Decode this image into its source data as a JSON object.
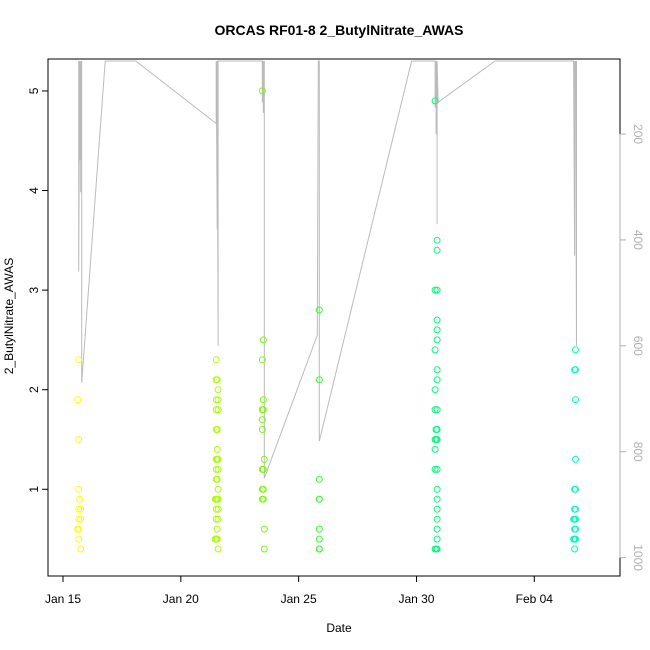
{
  "chart_data": {
    "type": "scatter",
    "title": "ORCAS RF01-8 2_ButylNitrate_AWAS",
    "xlabel": "Date",
    "ylabel": "2_ButylNitrate_AWAS",
    "xlim": [
      "2016-01-15",
      "2016-02-07"
    ],
    "ylim": [
      0.33,
      5.12
    ],
    "x_ticks": [
      {
        "date": "2016-01-15",
        "label": "Jan 15"
      },
      {
        "date": "2016-01-20",
        "label": "Jan 20"
      },
      {
        "date": "2016-01-25",
        "label": "Jan 25"
      },
      {
        "date": "2016-01-30",
        "label": "Jan 30"
      },
      {
        "date": "2016-02-04",
        "label": "Feb 04"
      }
    ],
    "y_ticks": [
      1,
      2,
      3,
      4,
      5
    ],
    "right_axis": {
      "label": "",
      "ticks": [
        200,
        400,
        600,
        800,
        1000
      ],
      "range_top": 62,
      "range_bottom": 1031,
      "color": "#b0b0b0"
    },
    "grid": false,
    "series": [
      {
        "color": "#ffff00",
        "points": [
          [
            "2016-01-15 16:00",
            2.3
          ],
          [
            "2016-01-15 15:00",
            1.9
          ],
          [
            "2016-01-15 16:00",
            1.5
          ],
          [
            "2016-01-15 16:00",
            1.0
          ],
          [
            "2016-01-15 17:00",
            0.9
          ],
          [
            "2016-01-15 16:00",
            0.8
          ],
          [
            "2016-01-15 18:00",
            0.8
          ],
          [
            "2016-01-15 16:00",
            0.7
          ],
          [
            "2016-01-15 18:00",
            0.7
          ],
          [
            "2016-01-15 15:00",
            0.6
          ],
          [
            "2016-01-15 16:00",
            0.6
          ],
          [
            "2016-01-15 16:00",
            0.5
          ],
          [
            "2016-01-15 18:00",
            0.4
          ]
        ]
      },
      {
        "color": "#aaff00",
        "points": [
          [
            "2016-01-21 12:00",
            2.3
          ],
          [
            "2016-01-21 12:00",
            2.1
          ],
          [
            "2016-01-21 13:00",
            2.1
          ],
          [
            "2016-01-21 14:00",
            2.0
          ],
          [
            "2016-01-21 12:00",
            1.9
          ],
          [
            "2016-01-21 14:00",
            1.9
          ],
          [
            "2016-01-21 12:00",
            1.8
          ],
          [
            "2016-01-21 14:00",
            1.8
          ],
          [
            "2016-01-21 12:00",
            1.6
          ],
          [
            "2016-01-21 13:00",
            1.6
          ],
          [
            "2016-01-21 13:00",
            1.4
          ],
          [
            "2016-01-21 12:00",
            1.3
          ],
          [
            "2016-01-21 13:00",
            1.3
          ],
          [
            "2016-01-21 14:00",
            1.3
          ],
          [
            "2016-01-21 12:00",
            1.2
          ],
          [
            "2016-01-21 14:00",
            1.2
          ],
          [
            "2016-01-21 12:00",
            1.1
          ],
          [
            "2016-01-21 13:00",
            1.1
          ],
          [
            "2016-01-21 14:00",
            1.0
          ],
          [
            "2016-01-21 11:00",
            0.9
          ],
          [
            "2016-01-21 12:00",
            0.9
          ],
          [
            "2016-01-21 13:00",
            0.9
          ],
          [
            "2016-01-21 14:00",
            0.9
          ],
          [
            "2016-01-21 12:00",
            0.8
          ],
          [
            "2016-01-21 14:00",
            0.8
          ],
          [
            "2016-01-21 12:00",
            0.7
          ],
          [
            "2016-01-21 14:00",
            0.7
          ],
          [
            "2016-01-21 13:00",
            0.6
          ],
          [
            "2016-01-21 11:00",
            0.5
          ],
          [
            "2016-01-21 12:00",
            0.5
          ],
          [
            "2016-01-21 13:00",
            0.5
          ],
          [
            "2016-01-21 14:00",
            0.4
          ]
        ]
      },
      {
        "color": "#77ff00",
        "points": [
          [
            "2016-01-23 11:00",
            5.0
          ],
          [
            "2016-01-23 12:00",
            2.5
          ],
          [
            "2016-01-23 11:00",
            2.3
          ],
          [
            "2016-01-23 12:00",
            1.9
          ],
          [
            "2016-01-23 11:00",
            1.8
          ],
          [
            "2016-01-23 12:00",
            1.8
          ],
          [
            "2016-01-23 11:00",
            1.7
          ],
          [
            "2016-01-23 11:00",
            1.6
          ],
          [
            "2016-01-23 13:00",
            1.3
          ],
          [
            "2016-01-23 11:00",
            1.2
          ],
          [
            "2016-01-23 12:00",
            1.2
          ],
          [
            "2016-01-23 11:00",
            1.0
          ],
          [
            "2016-01-23 12:00",
            1.0
          ],
          [
            "2016-01-23 11:00",
            0.9
          ],
          [
            "2016-01-23 12:00",
            0.9
          ],
          [
            "2016-01-23 13:00",
            0.6
          ],
          [
            "2016-01-23 13:00",
            0.4
          ]
        ]
      },
      {
        "color": "#33ff33",
        "points": [
          [
            "2016-01-25 21:00",
            2.8
          ],
          [
            "2016-01-25 21:00",
            2.1
          ],
          [
            "2016-01-25 21:00",
            1.1
          ],
          [
            "2016-01-25 21:00",
            0.9
          ],
          [
            "2016-01-25 21:00",
            0.9
          ],
          [
            "2016-01-25 21:00",
            0.6
          ],
          [
            "2016-01-25 21:00",
            0.5
          ],
          [
            "2016-01-25 21:00",
            0.4
          ],
          [
            "2016-01-25 21:00",
            0.4
          ]
        ]
      },
      {
        "color": "#00ff77",
        "points": [
          [
            "2016-01-30 19:00",
            4.9
          ],
          [
            "2016-01-30 21:00",
            3.5
          ],
          [
            "2016-01-30 21:00",
            3.4
          ],
          [
            "2016-01-30 19:00",
            3.0
          ],
          [
            "2016-01-30 21:00",
            3.0
          ],
          [
            "2016-01-30 21:00",
            2.7
          ],
          [
            "2016-01-30 21:00",
            2.6
          ],
          [
            "2016-01-30 21:00",
            2.5
          ],
          [
            "2016-01-30 19:00",
            2.4
          ],
          [
            "2016-01-30 21:00",
            2.2
          ],
          [
            "2016-01-30 21:00",
            2.1
          ],
          [
            "2016-01-30 19:00",
            2.0
          ],
          [
            "2016-01-30 19:00",
            1.8
          ],
          [
            "2016-01-30 21:00",
            1.8
          ],
          [
            "2016-01-30 20:00",
            1.6
          ],
          [
            "2016-01-30 21:00",
            1.6
          ],
          [
            "2016-01-30 19:00",
            1.5
          ],
          [
            "2016-01-30 20:00",
            1.5
          ],
          [
            "2016-01-30 21:00",
            1.5
          ],
          [
            "2016-01-30 19:00",
            1.4
          ],
          [
            "2016-01-30 19:00",
            1.2
          ],
          [
            "2016-01-30 21:00",
            1.2
          ],
          [
            "2016-01-30 21:00",
            1.0
          ],
          [
            "2016-01-30 21:00",
            0.9
          ],
          [
            "2016-01-30 21:00",
            0.8
          ],
          [
            "2016-01-30 21:00",
            0.7
          ],
          [
            "2016-01-30 21:00",
            0.6
          ],
          [
            "2016-01-30 21:00",
            0.5
          ],
          [
            "2016-01-30 19:00",
            0.4
          ],
          [
            "2016-01-30 20:00",
            0.4
          ],
          [
            "2016-01-30 21:00",
            0.4
          ]
        ]
      },
      {
        "color": "#00ffbb",
        "points": [
          [
            "2016-02-05 18:00",
            2.4
          ],
          [
            "2016-02-05 17:00",
            2.2
          ],
          [
            "2016-02-05 18:00",
            2.2
          ],
          [
            "2016-02-05 18:00",
            1.9
          ],
          [
            "2016-02-05 18:00",
            1.3
          ],
          [
            "2016-02-05 17:00",
            1.0
          ],
          [
            "2016-02-05 18:00",
            1.0
          ],
          [
            "2016-02-05 17:00",
            0.8
          ],
          [
            "2016-02-05 18:00",
            0.8
          ],
          [
            "2016-02-05 16:00",
            0.7
          ],
          [
            "2016-02-05 17:00",
            0.7
          ],
          [
            "2016-02-05 18:00",
            0.7
          ],
          [
            "2016-02-05 17:00",
            0.6
          ],
          [
            "2016-02-05 18:00",
            0.6
          ],
          [
            "2016-02-05 16:00",
            0.5
          ],
          [
            "2016-02-05 17:00",
            0.5
          ],
          [
            "2016-02-05 18:00",
            0.5
          ],
          [
            "2016-02-05 17:00",
            0.4
          ]
        ]
      }
    ],
    "overlay_line": {
      "color": "#bbbbbb",
      "axis": "right",
      "points": [
        [
          "2016-01-15 16:00",
          62
        ],
        [
          "2016-01-15 16:00",
          460
        ],
        [
          "2016-01-15 17:00",
          62
        ],
        [
          "2016-01-15 17:00",
          250
        ],
        [
          "2016-01-15 18:00",
          62
        ],
        [
          "2016-01-15 18:00",
          310
        ],
        [
          "2016-01-15 19:00",
          62
        ],
        [
          "2016-01-15 19:00",
          670
        ],
        [
          "2016-01-16 19:00",
          62
        ],
        [
          "2016-01-18 02:00",
          62
        ],
        [
          "2016-01-21 12:00",
          180
        ],
        [
          "2016-01-21 12:00",
          62
        ],
        [
          "2016-01-21 13:00",
          380
        ],
        [
          "2016-01-21 13:00",
          62
        ],
        [
          "2016-01-21 14:00",
          600
        ],
        [
          "2016-01-21 14:00",
          62
        ],
        [
          "2016-01-23 11:00",
          62
        ],
        [
          "2016-01-23 11:00",
          140
        ],
        [
          "2016-01-23 12:00",
          62
        ],
        [
          "2016-01-23 12:00",
          160
        ],
        [
          "2016-01-23 13:00",
          62
        ],
        [
          "2016-01-23 13:00",
          850
        ],
        [
          "2016-01-25 19:00",
          580
        ],
        [
          "2016-01-25 20:00",
          62
        ],
        [
          "2016-01-25 21:00",
          62
        ],
        [
          "2016-01-25 21:00",
          780
        ],
        [
          "2016-01-29 19:00",
          62
        ],
        [
          "2016-01-30 19:00",
          62
        ],
        [
          "2016-01-30 19:00",
          150
        ],
        [
          "2016-01-30 20:00",
          62
        ],
        [
          "2016-01-30 20:00",
          200
        ],
        [
          "2016-01-30 21:00",
          62
        ],
        [
          "2016-01-30 21:00",
          370
        ],
        [
          "2016-01-30 21:00",
          62
        ],
        [
          "2016-01-30 22:00",
          140
        ],
        [
          "2016-02-02 08:00",
          62
        ],
        [
          "2016-02-05 16:00",
          62
        ],
        [
          "2016-02-05 17:00",
          430
        ],
        [
          "2016-02-05 17:00",
          62
        ],
        [
          "2016-02-05 18:00",
          130
        ],
        [
          "2016-02-05 18:00",
          62
        ],
        [
          "2016-02-05 19:00",
          600
        ],
        [
          "2016-02-05 19:00",
          62
        ]
      ]
    }
  }
}
